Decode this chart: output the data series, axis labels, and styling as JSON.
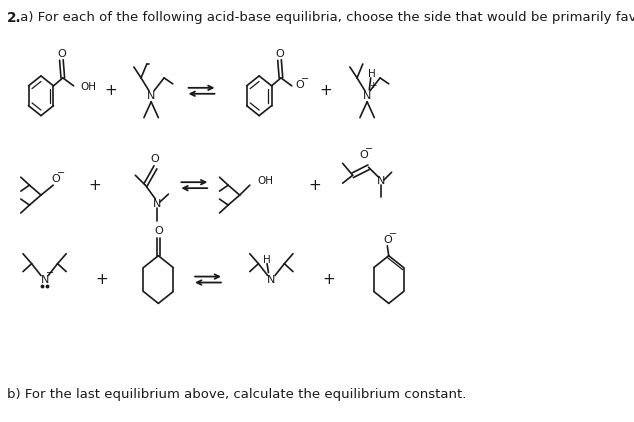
{
  "title_bold": "2.",
  "title_rest": " a) For each of the following acid-base equilibria, choose the side that would be primarily favored",
  "subtitle": "b) For the last equilibrium above, calculate the equilibrium constant.",
  "bg_color": "#ffffff",
  "text_color": "#1a1a1a",
  "line_color": "#1a1a1a",
  "title_fontsize": 9.5,
  "subtitle_fontsize": 9.5,
  "fig_width": 6.34,
  "fig_height": 4.22,
  "dpi": 100
}
